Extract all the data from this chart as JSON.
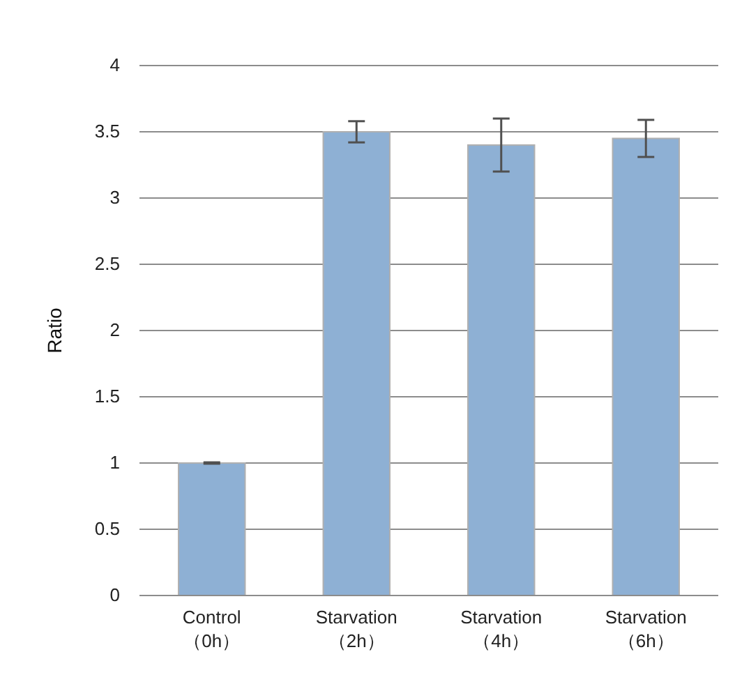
{
  "chart_data": {
    "type": "bar",
    "ylabel": "Ratio",
    "categories": [
      "Control\n（0h）",
      "Starvation\n（2h）",
      "Starvation\n（4h）",
      "Starvation\n（6h）"
    ],
    "values": [
      1.0,
      3.5,
      3.4,
      3.45
    ],
    "errors": [
      0.005,
      0.08,
      0.2,
      0.14
    ],
    "color": "#8eb0d4",
    "ylim": [
      0,
      4
    ],
    "yticks": [
      0,
      0.5,
      1,
      1.5,
      2,
      2.5,
      3,
      3.5,
      4
    ],
    "grid": "y"
  }
}
